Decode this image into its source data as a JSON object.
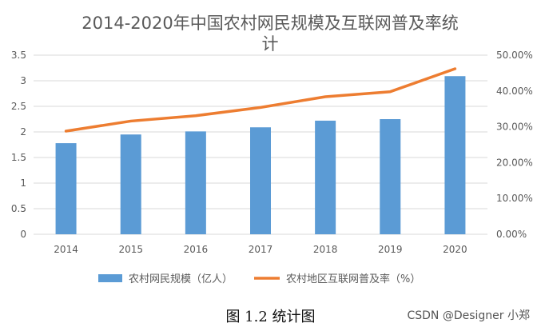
{
  "chart_data": {
    "type": "bar",
    "title_line1": "2014-2020年中国农村网民规模及互联网普及率统",
    "title_line2": "计",
    "categories": [
      "2014",
      "2015",
      "2016",
      "2017",
      "2018",
      "2019",
      "2020"
    ],
    "series": [
      {
        "name": "农村网民规模（亿人）",
        "type": "bar",
        "axis": "left",
        "values": [
          1.78,
          1.95,
          2.01,
          2.09,
          2.22,
          2.25,
          3.09
        ]
      },
      {
        "name": "农村地区互联网普及率（%）",
        "type": "line",
        "axis": "right",
        "values": [
          28.8,
          31.6,
          33.1,
          35.4,
          38.4,
          39.8,
          46.2
        ]
      }
    ],
    "y_left": {
      "lim": [
        0,
        3.5
      ],
      "ticks": [
        "0",
        "0.5",
        "1",
        "1.5",
        "2",
        "2.5",
        "3",
        "3.5"
      ]
    },
    "y_right": {
      "lim": [
        0,
        50
      ],
      "ticks": [
        "0.00%",
        "10.00%",
        "20.00%",
        "30.00%",
        "40.00%",
        "50.00%"
      ]
    },
    "grid": true,
    "legend_position": "bottom",
    "colors": {
      "bar": "#5B9BD5",
      "line": "#ED7D31",
      "grid": "#D9D9D9",
      "text": "#595959"
    }
  },
  "caption": "图 1.2 统计图",
  "watermark": "CSDN @Designer 小郑"
}
